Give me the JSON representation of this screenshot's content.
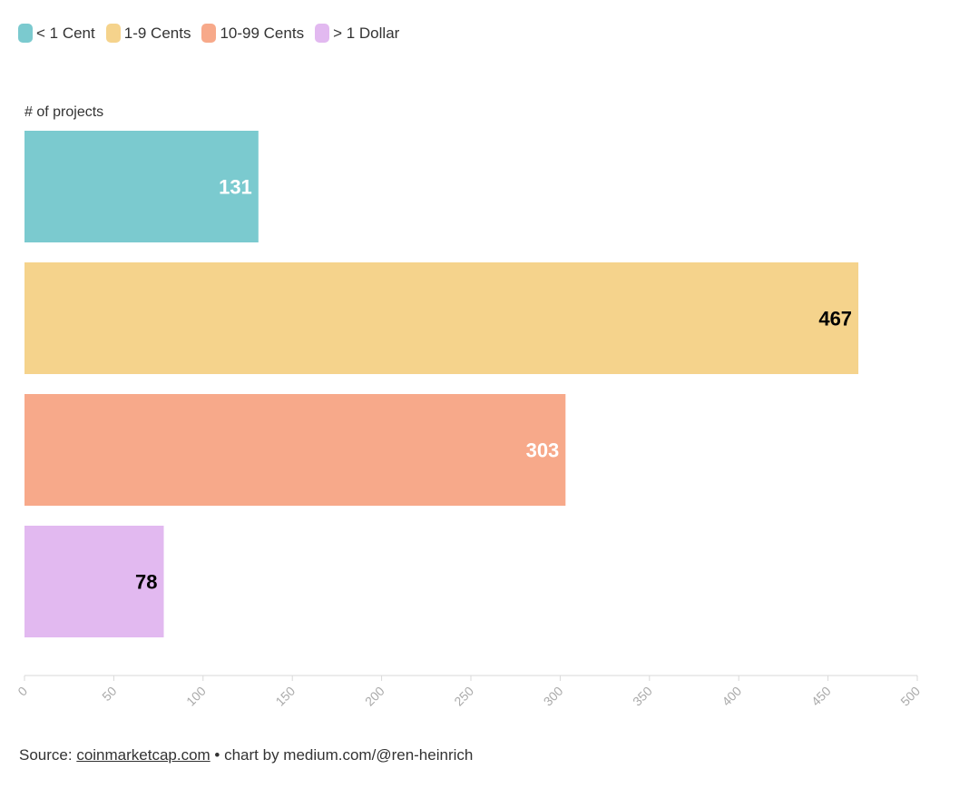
{
  "chart_data": {
    "type": "bar",
    "orientation": "horizontal",
    "categories": [
      "< 1 Cent",
      "1-9 Cents",
      "10-99 Cents",
      "> 1 Dollar"
    ],
    "values": [
      131,
      467,
      303,
      78
    ],
    "colors": [
      "#7bcacf",
      "#f5d38c",
      "#f7a98a",
      "#e2b9f0"
    ],
    "label_colors": [
      "#ffffff",
      "#000000",
      "#ffffff",
      "#000000"
    ],
    "value_labels": [
      "131",
      "467",
      "303",
      "78"
    ],
    "title": "",
    "xlabel": "",
    "ylabel": "# of projects",
    "xlim": [
      0,
      500
    ],
    "xticks": [
      "0",
      "50",
      "100",
      "150",
      "200",
      "250",
      "300",
      "350",
      "400",
      "450",
      "500"
    ],
    "legend_position": "top-left",
    "grid": false
  },
  "legend": {
    "items": [
      {
        "label": "< 1 Cent",
        "color": "#7bcacf"
      },
      {
        "label": "1-9 Cents",
        "color": "#f5d38c"
      },
      {
        "label": "10-99 Cents",
        "color": "#f7a98a"
      },
      {
        "label": "> 1 Dollar",
        "color": "#e2b9f0"
      }
    ]
  },
  "source": {
    "prefix": "Source: ",
    "link_text": "coinmarketcap.com",
    "suffix": " • chart by medium.com/@ren-heinrich"
  }
}
